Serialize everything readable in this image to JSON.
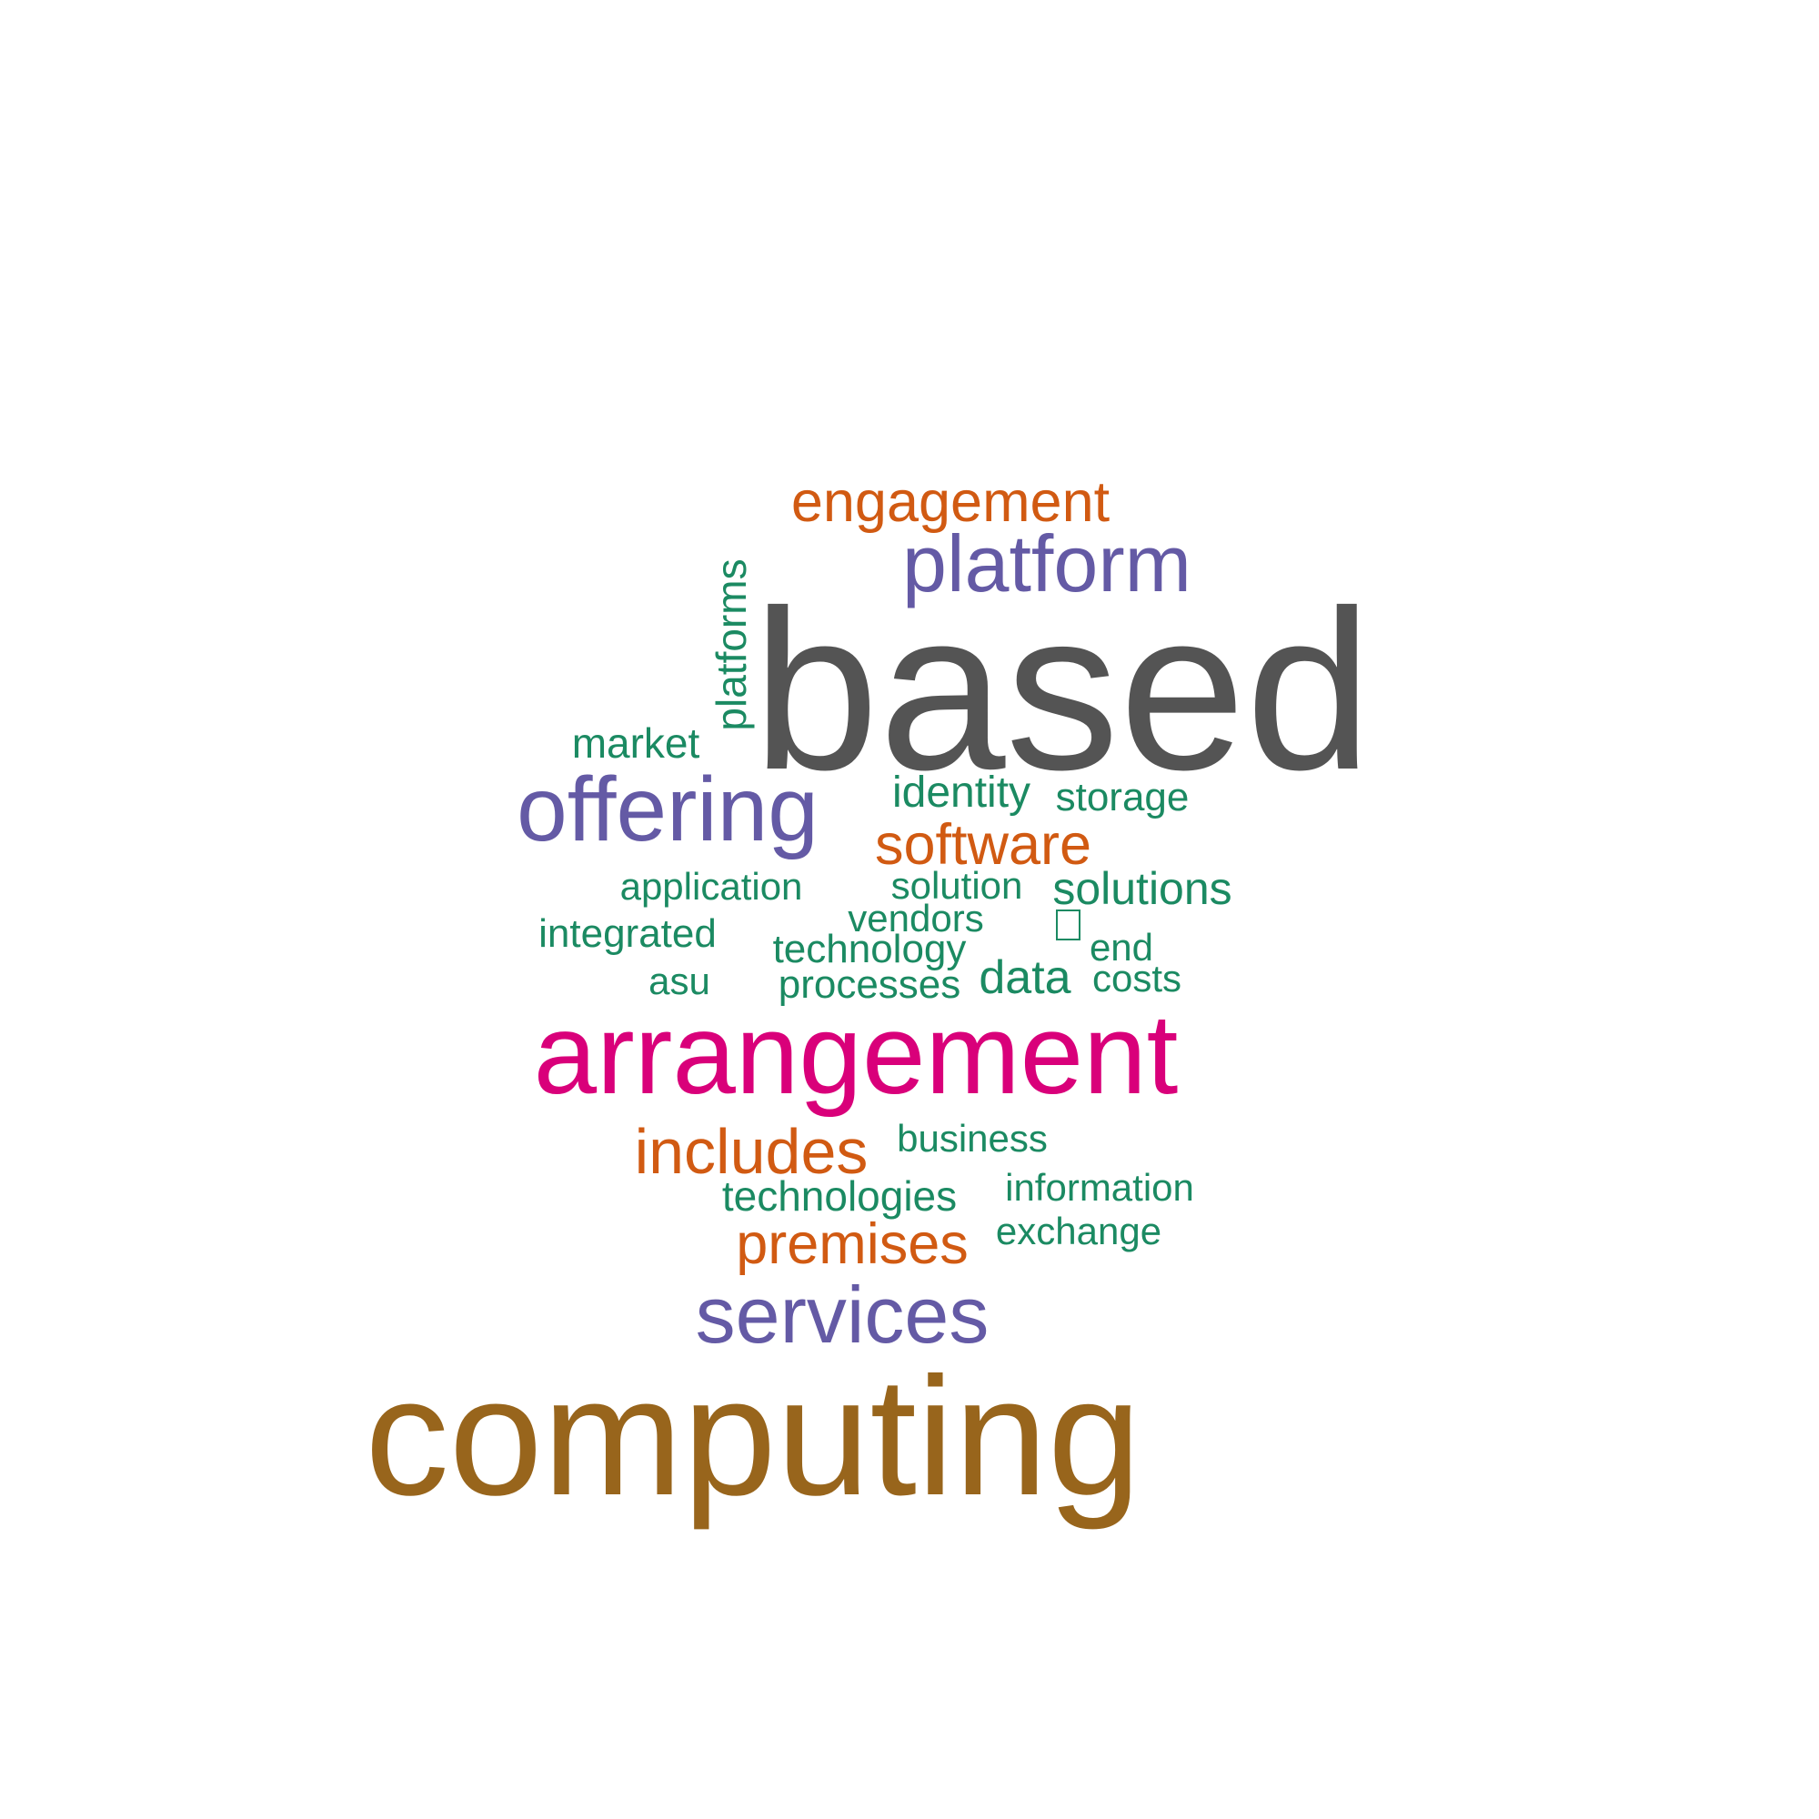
{
  "word_cloud": {
    "colors": {
      "dark_gray": "#545454",
      "brown": "#98651c",
      "magenta": "#d9007a",
      "purple": "#645aa5",
      "orange": "#d15a12",
      "green": "#1b8a62"
    },
    "words": [
      {
        "id": "based",
        "text": "based",
        "color": "#545454"
      },
      {
        "id": "computing",
        "text": "computing",
        "color": "#98651c"
      },
      {
        "id": "arrangement",
        "text": "arrangement",
        "color": "#d9007a"
      },
      {
        "id": "offering",
        "text": "offering",
        "color": "#645aa5"
      },
      {
        "id": "platform",
        "text": "platform",
        "color": "#645aa5"
      },
      {
        "id": "services",
        "text": "services",
        "color": "#645aa5"
      },
      {
        "id": "engagement",
        "text": "engagement",
        "color": "#d15a12"
      },
      {
        "id": "software",
        "text": "software",
        "color": "#d15a12"
      },
      {
        "id": "includes",
        "text": "includes",
        "color": "#d15a12"
      },
      {
        "id": "premises",
        "text": "premises",
        "color": "#d15a12"
      },
      {
        "id": "platforms",
        "text": "platforms",
        "color": "#1b8a62"
      },
      {
        "id": "market",
        "text": "market",
        "color": "#1b8a62"
      },
      {
        "id": "identity",
        "text": "identity",
        "color": "#1b8a62"
      },
      {
        "id": "storage",
        "text": "storage",
        "color": "#1b8a62"
      },
      {
        "id": "application",
        "text": "application",
        "color": "#1b8a62"
      },
      {
        "id": "solution",
        "text": "solution",
        "color": "#1b8a62"
      },
      {
        "id": "solutions",
        "text": "solutions",
        "color": "#1b8a62"
      },
      {
        "id": "vendors",
        "text": "vendors",
        "color": "#1b8a62"
      },
      {
        "id": "integrated",
        "text": "integrated",
        "color": "#1b8a62"
      },
      {
        "id": "technology",
        "text": "technology",
        "color": "#1b8a62"
      },
      {
        "id": "end",
        "text": "end",
        "color": "#1b8a62"
      },
      {
        "id": "asu",
        "text": "asu",
        "color": "#1b8a62"
      },
      {
        "id": "processes",
        "text": "processes",
        "color": "#1b8a62"
      },
      {
        "id": "data",
        "text": "data",
        "color": "#1b8a62"
      },
      {
        "id": "costs",
        "text": "costs",
        "color": "#1b8a62"
      },
      {
        "id": "business",
        "text": "business",
        "color": "#1b8a62"
      },
      {
        "id": "information",
        "text": "information",
        "color": "#1b8a62"
      },
      {
        "id": "technologies",
        "text": "technologies",
        "color": "#1b8a62"
      },
      {
        "id": "exchange",
        "text": "exchange",
        "color": "#1b8a62"
      }
    ]
  }
}
